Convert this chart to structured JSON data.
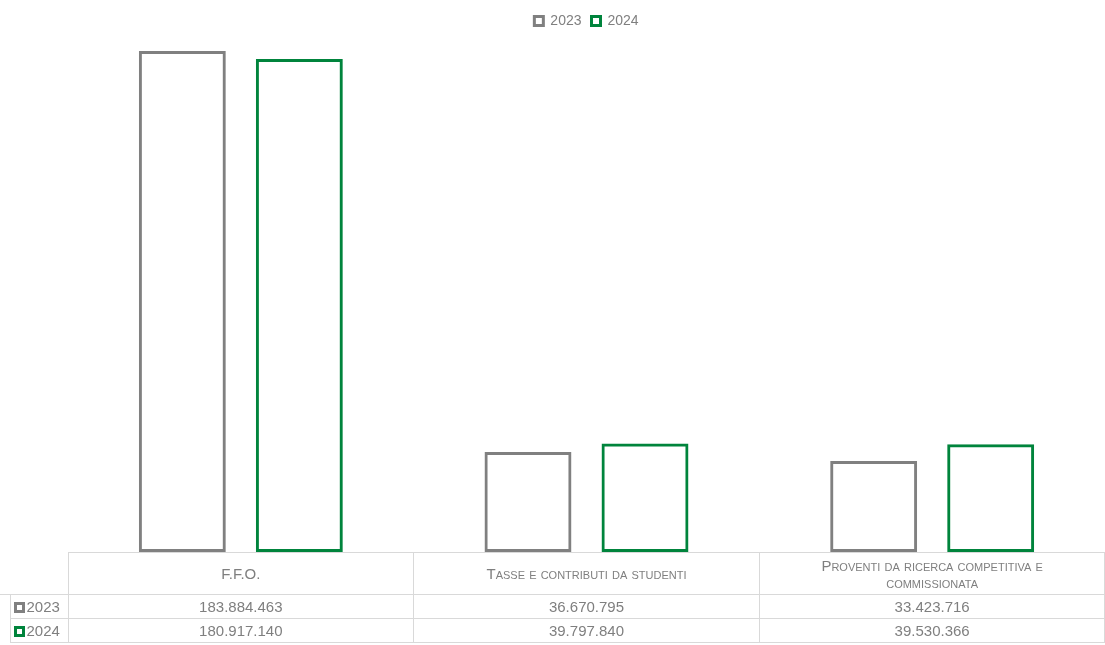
{
  "chart_data": {
    "type": "bar",
    "categories": [
      "F.F.O.",
      "Tasse e contributi da studenti",
      "Proventi da ricerca competitiva e commissionata"
    ],
    "series": [
      {
        "name": "2023",
        "color": "#808080",
        "values": [
          183884463,
          36670795,
          33423716
        ],
        "value_labels": [
          "183.884.463",
          "36.670.795",
          "33.423.716"
        ]
      },
      {
        "name": "2024",
        "color": "#00843c",
        "values": [
          180917140,
          39797840,
          39530366
        ],
        "value_labels": [
          "180.917.140",
          "39.797.840",
          "39.530.366"
        ]
      }
    ],
    "legend": "top",
    "tick_labels": "x"
  }
}
